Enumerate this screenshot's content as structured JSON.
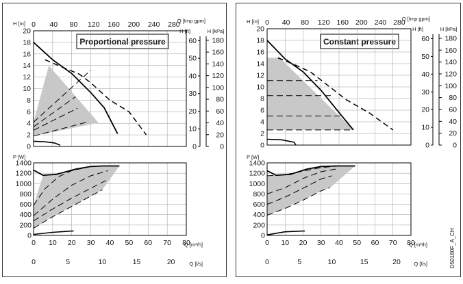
{
  "side_label": "D50180F_A_CH",
  "chart_data": [
    {
      "type": "line",
      "title": "Proportional pressure",
      "upper": {
        "ylabel_left": "H [m]",
        "ylabel_top": "Q [Imp gpm]",
        "ylabel_ft": "H [ft]",
        "ylabel_kpa": "H [kPa]",
        "y_ticks": [
          "0",
          "2",
          "4",
          "6",
          "8",
          "10",
          "12",
          "14",
          "16",
          "18",
          "20"
        ],
        "gpm_ticks": [
          "0",
          "40",
          "80",
          "120",
          "160",
          "200",
          "240",
          "280"
        ],
        "ft_ticks": [
          "0",
          "10",
          "20",
          "30",
          "40",
          "50",
          "60"
        ],
        "kpa_ticks": [
          "0",
          "20",
          "40",
          "60",
          "80",
          "100",
          "120",
          "140",
          "160",
          "180"
        ],
        "xlim": [
          0,
          80
        ],
        "ylim": [
          0,
          20
        ],
        "max_curve": [
          [
            0,
            18
          ],
          [
            10,
            15
          ],
          [
            20,
            12.6
          ],
          [
            30,
            9.3
          ],
          [
            37,
            6.7
          ],
          [
            44,
            2.2
          ]
        ],
        "max_dashed_curve": [
          [
            6,
            15
          ],
          [
            13,
            14
          ],
          [
            24,
            12.5
          ],
          [
            30,
            11
          ],
          [
            40,
            8
          ],
          [
            50,
            6
          ],
          [
            59,
            2
          ]
        ],
        "min_curve": [
          [
            0,
            0.9
          ],
          [
            6,
            0.8
          ],
          [
            11,
            0.6
          ],
          [
            14,
            0.2
          ]
        ],
        "control_lines": [
          [
            [
              0,
              4.2
            ],
            [
              30,
              13.2
            ]
          ],
          [
            [
              0,
              3.4
            ],
            [
              22,
              8.6
            ]
          ],
          [
            [
              0,
              2.8
            ],
            [
              23,
              6.6
            ]
          ],
          [
            [
              0,
              1.8
            ],
            [
              28,
              4.2
            ]
          ]
        ],
        "shaded_area": [
          [
            0,
            4.2
          ],
          [
            8,
            14
          ],
          [
            34,
            4.1
          ],
          [
            0,
            1.8
          ]
        ]
      },
      "lower": {
        "ylabel": "P [W]",
        "xlabel_m3h": "Q [m³/h]",
        "xlabel_ls": "Q [l/s]",
        "y_ticks": [
          "0",
          "200",
          "400",
          "600",
          "800",
          "1000",
          "1200",
          "1400"
        ],
        "x_ticks": [
          "0",
          "10",
          "20",
          "30",
          "40",
          "50",
          "60",
          "70",
          "80"
        ],
        "ls_ticks": [
          "0",
          "5",
          "10",
          "15",
          "20"
        ],
        "xlim": [
          0,
          80
        ],
        "ylim": [
          0,
          1400
        ],
        "max_curve": [
          [
            0,
            1260
          ],
          [
            5,
            1160
          ],
          [
            12,
            1180
          ],
          [
            22,
            1280
          ],
          [
            30,
            1330
          ],
          [
            36,
            1340
          ],
          [
            45,
            1340
          ]
        ],
        "dashed_curves": [
          [
            [
              0,
              580
            ],
            [
              6,
              900
            ],
            [
              13,
              1130
            ],
            [
              20,
              1250
            ],
            [
              30,
              1330
            ]
          ],
          [
            [
              0,
              380
            ],
            [
              10,
              700
            ],
            [
              20,
              970
            ],
            [
              30,
              1150
            ],
            [
              39,
              1250
            ]
          ],
          [
            [
              0,
              280
            ],
            [
              10,
              510
            ],
            [
              20,
              720
            ],
            [
              30,
              910
            ],
            [
              38,
              1060
            ]
          ],
          [
            [
              0,
              140
            ],
            [
              10,
              360
            ],
            [
              20,
              560
            ],
            [
              30,
              760
            ],
            [
              36,
              880
            ]
          ]
        ],
        "min_curve": [
          [
            0,
            20
          ],
          [
            10,
            60
          ],
          [
            20,
            85
          ],
          [
            21,
            85
          ]
        ]
      }
    },
    {
      "type": "line",
      "title": "Constant pressure",
      "upper": {
        "ylabel_left": "H [m]",
        "ylabel_top": "Q [Imp gpm]",
        "ylabel_ft": "H [ft]",
        "ylabel_kpa": "H [kPa]",
        "y_ticks": [
          "0",
          "2",
          "4",
          "6",
          "8",
          "10",
          "12",
          "14",
          "16",
          "18",
          "20"
        ],
        "gpm_ticks": [
          "0",
          "40",
          "80",
          "120",
          "160",
          "200",
          "240",
          "280"
        ],
        "ft_ticks": [
          "0",
          "10",
          "20",
          "30",
          "40",
          "50",
          "60"
        ],
        "kpa_ticks": [
          "0",
          "20",
          "40",
          "60",
          "80",
          "100",
          "120",
          "140",
          "160",
          "180"
        ],
        "xlim": [
          0,
          80
        ],
        "ylim": [
          0,
          20
        ],
        "max_curve": [
          [
            0,
            18
          ],
          [
            10,
            14.8
          ],
          [
            20,
            12.6
          ],
          [
            30,
            9.4
          ],
          [
            40,
            5.6
          ],
          [
            48,
            2.6
          ]
        ],
        "max_dashed_curve": [
          [
            6,
            15
          ],
          [
            14,
            14
          ],
          [
            24,
            12.6
          ],
          [
            32,
            10.7
          ],
          [
            44,
            7.8
          ],
          [
            57,
            5.5
          ],
          [
            70,
            2.6
          ]
        ],
        "min_curve": [
          [
            0,
            1
          ],
          [
            8,
            0.9
          ],
          [
            15,
            0.5
          ],
          [
            16,
            0
          ]
        ],
        "control_lines": [
          [
            [
              0,
              11.1
            ],
            [
              28,
              11.1
            ]
          ],
          [
            [
              0,
              8.5
            ],
            [
              36,
              8.5
            ]
          ],
          [
            [
              0,
              5
            ],
            [
              42,
              5
            ]
          ],
          [
            [
              0,
              2.6
            ],
            [
              47,
              2.6
            ]
          ]
        ],
        "shaded_area": [
          [
            0,
            15
          ],
          [
            7,
            15
          ],
          [
            48,
            2.6
          ],
          [
            0,
            2.6
          ]
        ]
      },
      "lower": {
        "ylabel": "P [W]",
        "xlabel_m3h": "Q [m³/h]",
        "xlabel_ls": "Q [l/s]",
        "y_ticks": [
          "0",
          "200",
          "400",
          "600",
          "800",
          "1000",
          "1200",
          "1400"
        ],
        "x_ticks": [
          "0",
          "10",
          "20",
          "30",
          "40",
          "50",
          "60",
          "70",
          "80"
        ],
        "ls_ticks": [
          "0",
          "5",
          "10",
          "15",
          "20"
        ],
        "xlim": [
          0,
          80
        ],
        "ylim": [
          0,
          1400
        ],
        "max_curve": [
          [
            0,
            1250
          ],
          [
            5,
            1160
          ],
          [
            13,
            1180
          ],
          [
            22,
            1280
          ],
          [
            30,
            1330
          ],
          [
            38,
            1340
          ],
          [
            49,
            1340
          ]
        ],
        "dashed_curves": [
          [
            [
              0,
              1150
            ],
            [
              10,
              1170
            ],
            [
              20,
              1240
            ],
            [
              30,
              1310
            ],
            [
              40,
              1340
            ]
          ],
          [
            [
              0,
              800
            ],
            [
              10,
              920
            ],
            [
              20,
              1100
            ],
            [
              30,
              1230
            ],
            [
              40,
              1290
            ]
          ],
          [
            [
              0,
              600
            ],
            [
              10,
              740
            ],
            [
              20,
              910
            ],
            [
              30,
              1090
            ],
            [
              36,
              1150
            ]
          ],
          [
            [
              0,
              390
            ],
            [
              10,
              520
            ],
            [
              20,
              680
            ],
            [
              30,
              860
            ],
            [
              35,
              920
            ]
          ]
        ],
        "min_curve": [
          [
            0,
            10
          ],
          [
            10,
            70
          ],
          [
            20,
            85
          ],
          [
            21,
            85
          ]
        ]
      }
    }
  ]
}
